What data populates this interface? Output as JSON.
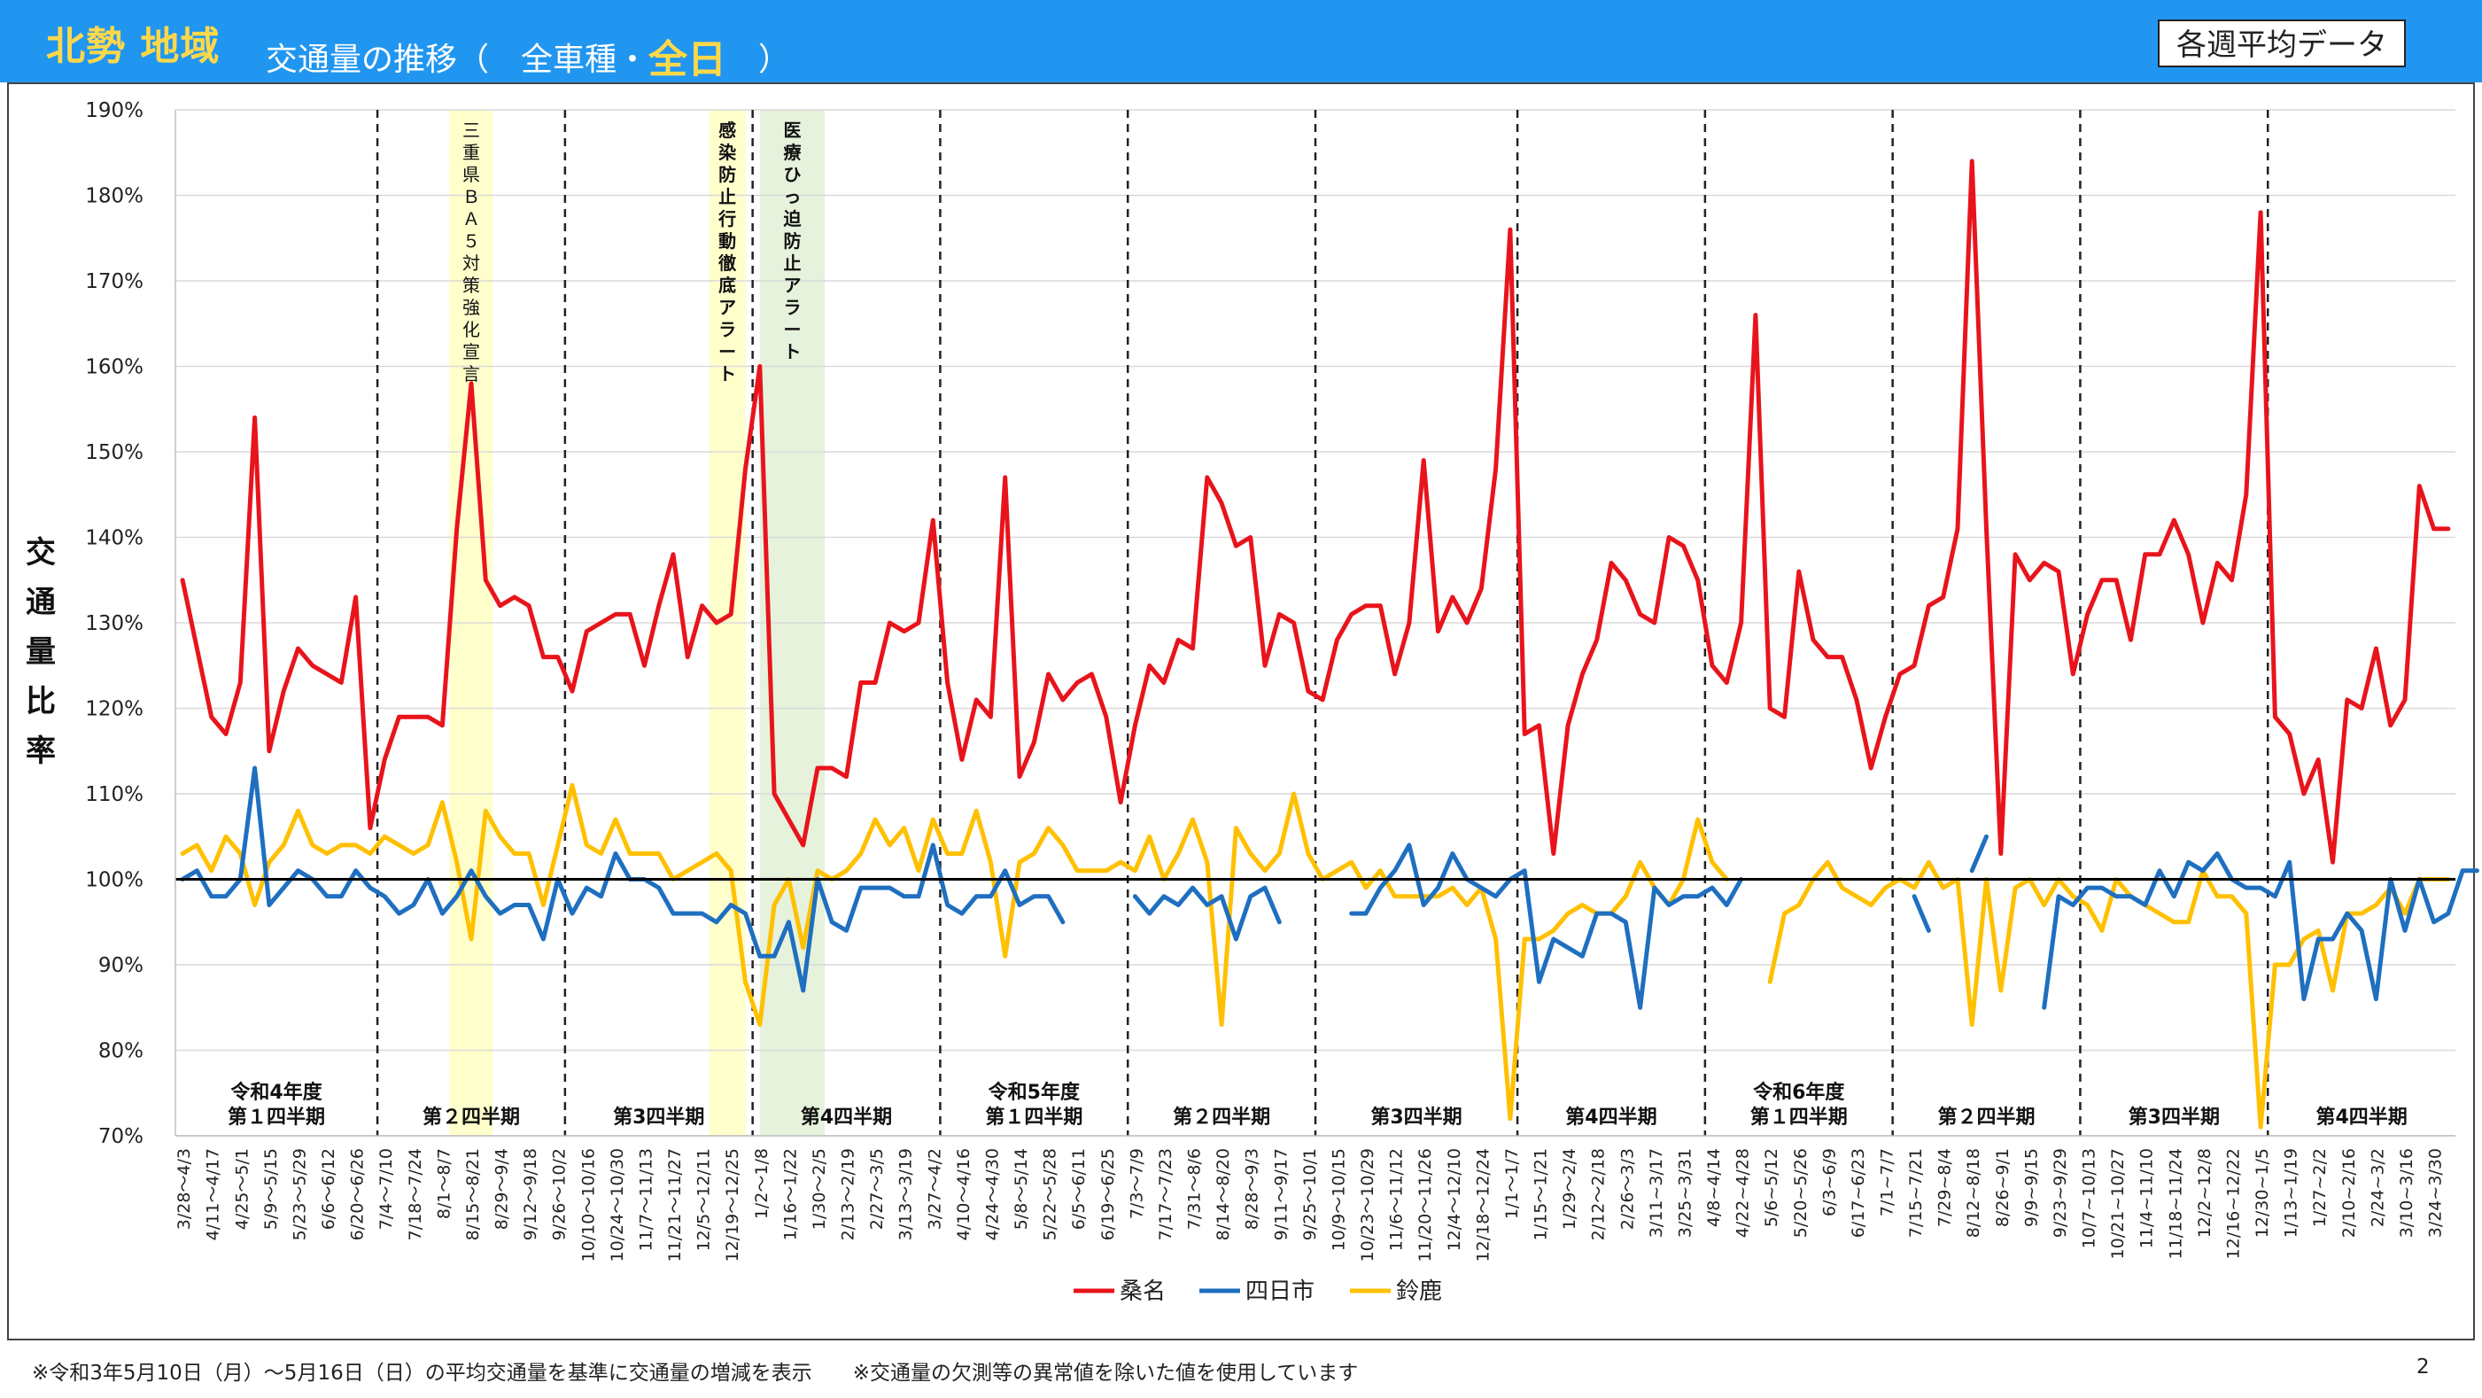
{
  "header": {
    "region": "北勢 地域",
    "title_prefix": "交通量の推移（　全車種・",
    "title_highlight": "全日",
    "title_suffix": "　）",
    "badge": "各週平均データ"
  },
  "footnote": "※令和3年5月10日（月）～5月16日（日）の平均交通量を基準に交通量の増減を表示　　※交通量の欠測等の異常値を除いた値を使用しています",
  "page_number": "2",
  "colors": {
    "kuwana": "#e8141c",
    "yokkaichi": "#1f6fc0",
    "suzuka": "#ffc000"
  },
  "chart_data": {
    "type": "line",
    "ylabel": "交通量比率",
    "ylim": [
      70,
      190
    ],
    "y_ticks": [
      70,
      80,
      90,
      100,
      110,
      120,
      130,
      140,
      150,
      160,
      170,
      180,
      190
    ],
    "y_tick_labels": [
      "70%",
      "80%",
      "90%",
      "100%",
      "110%",
      "120%",
      "130%",
      "140%",
      "150%",
      "160%",
      "170%",
      "180%",
      "190%"
    ],
    "reference_line": 100,
    "x_labels": [
      "3/28～4/3",
      "4/11～4/17",
      "4/25～5/1",
      "5/9～5/15",
      "5/23～5/29",
      "6/6～6/12",
      "6/20～6/26",
      "7/4～7/10",
      "7/18～7/24",
      "8/1～8/7",
      "8/15～8/21",
      "8/29～9/4",
      "9/12～9/18",
      "9/26～10/2",
      "10/10～10/16",
      "10/24～10/30",
      "11/7～11/13",
      "11/21～11/27",
      "12/5～12/11",
      "12/19～12/25",
      "1/2～1/8",
      "1/16～1/22",
      "1/30～2/5",
      "2/13～2/19",
      "2/27～3/5",
      "3/13～3/19",
      "3/27～4/2",
      "4/10～4/16",
      "4/24～4/30",
      "5/8～5/14",
      "5/22～5/28",
      "6/5～6/11",
      "6/19～6/25",
      "7/3～7/9",
      "7/17～7/23",
      "7/31～8/6",
      "8/14～8/20",
      "8/28～9/3",
      "9/11～9/17",
      "9/25～10/1",
      "10/9～10/15",
      "10/23～10/29",
      "11/6～11/12",
      "11/20～11/26",
      "12/4～12/10",
      "12/18～12/24",
      "1/1～1/7",
      "1/15～1/21",
      "1/29～2/4",
      "2/12～2/18",
      "2/26～3/3",
      "3/11~3/17",
      "3/25~3/31",
      "4/8~4/14",
      "4/22~4/28",
      "5/6~5/12",
      "5/20~5/26",
      "6/3~6/9",
      "6/17~6/23",
      "7/1~7/7",
      "7/15~7/21",
      "7/29~8/4",
      "8/12~8/18",
      "8/26~9/1",
      "9/9~9/15",
      "9/23~9/29",
      "10/7~10/13",
      "10/21~10/27",
      "11/4~11/10",
      "11/18~11/24",
      "12/2~12/8",
      "12/16~12/22",
      "12/30~1/5",
      "1/13~1/19",
      "1/27~2/2",
      "2/10~2/16",
      "2/24~3/2",
      "3/10~3/16",
      "3/24~3/30"
    ],
    "x_count": 158,
    "series": [
      {
        "name": "桑名",
        "color": "#e8141c",
        "values": [
          135,
          127,
          119,
          117,
          123,
          154,
          115,
          122,
          127,
          125,
          124,
          123,
          133,
          106,
          114,
          119,
          119,
          119,
          118,
          141,
          158,
          135,
          132,
          133,
          132,
          126,
          126,
          122,
          129,
          130,
          131,
          131,
          125,
          132,
          138,
          126,
          132,
          130,
          131,
          148,
          160,
          110,
          107,
          104,
          113,
          113,
          112,
          123,
          123,
          130,
          129,
          130,
          142,
          123,
          114,
          121,
          119,
          147,
          112,
          116,
          124,
          121,
          123,
          124,
          119,
          109,
          118,
          125,
          123,
          128,
          127,
          147,
          144,
          139,
          140,
          125,
          131,
          130,
          122,
          121,
          128,
          131,
          132,
          132,
          124,
          130,
          149,
          129,
          133,
          130,
          134,
          148,
          176,
          117,
          118,
          103,
          118,
          124,
          128,
          137,
          135,
          131,
          130,
          140,
          139,
          135,
          125,
          123,
          130,
          166,
          120,
          119,
          136,
          128,
          126,
          126,
          121,
          113,
          119,
          124,
          125,
          132,
          133,
          141,
          184,
          141,
          103,
          138,
          135,
          137,
          136,
          124,
          131,
          135,
          135,
          128,
          138,
          138,
          142,
          138,
          130,
          137,
          135,
          145,
          178,
          119,
          117,
          110,
          114,
          102,
          121,
          120,
          127,
          118,
          121,
          146,
          141,
          141
        ]
      },
      {
        "name": "四日市",
        "color": "#1f6fc0",
        "values": [
          100,
          101,
          98,
          98,
          100,
          113,
          97,
          99,
          101,
          100,
          98,
          98,
          101,
          99,
          98,
          96,
          97,
          100,
          96,
          98,
          101,
          98,
          96,
          97,
          97,
          93,
          100,
          96,
          99,
          98,
          103,
          100,
          100,
          99,
          96,
          96,
          96,
          95,
          97,
          96,
          91,
          91,
          95,
          87,
          100,
          95,
          94,
          99,
          99,
          99,
          98,
          98,
          104,
          97,
          96,
          98,
          98,
          101,
          97,
          98,
          98,
          95,
          null,
          null,
          null,
          null,
          98,
          96,
          98,
          97,
          99,
          97,
          98,
          93,
          98,
          99,
          95,
          null,
          null,
          null,
          null,
          96,
          96,
          99,
          101,
          104,
          97,
          99,
          103,
          100,
          99,
          98,
          100,
          101,
          88,
          93,
          92,
          91,
          96,
          96,
          95,
          85,
          99,
          97,
          98,
          98,
          99,
          97,
          100,
          null,
          null,
          null,
          null,
          null,
          null,
          null,
          null,
          null,
          null,
          null,
          98,
          94,
          null,
          null,
          101,
          105,
          null,
          null,
          null,
          85,
          98,
          97,
          99,
          99,
          98,
          98,
          97,
          101,
          98,
          102,
          101,
          103,
          100,
          99,
          99,
          98,
          102,
          86,
          93,
          93,
          96,
          94,
          86,
          100,
          94,
          100,
          95,
          96,
          101,
          101
        ]
      },
      {
        "name": "鈴鹿",
        "color": "#ffc000",
        "values": [
          103,
          104,
          101,
          105,
          103,
          97,
          102,
          104,
          108,
          104,
          103,
          104,
          104,
          103,
          105,
          104,
          103,
          104,
          109,
          102,
          93,
          108,
          105,
          103,
          103,
          97,
          104,
          111,
          104,
          103,
          107,
          103,
          103,
          103,
          100,
          101,
          102,
          103,
          101,
          88,
          83,
          97,
          100,
          92,
          101,
          100,
          101,
          103,
          107,
          104,
          106,
          101,
          107,
          103,
          103,
          108,
          102,
          91,
          102,
          103,
          106,
          104,
          101,
          101,
          101,
          102,
          101,
          105,
          100,
          103,
          107,
          102,
          83,
          106,
          103,
          101,
          103,
          110,
          103,
          100,
          101,
          102,
          99,
          101,
          98,
          98,
          98,
          98,
          99,
          97,
          99,
          93,
          72,
          93,
          93,
          94,
          96,
          97,
          96,
          96,
          98,
          102,
          99,
          97,
          100,
          107,
          102,
          100,
          null,
          null,
          88,
          96,
          97,
          100,
          102,
          99,
          98,
          97,
          99,
          100,
          99,
          102,
          99,
          100,
          83,
          100,
          87,
          99,
          100,
          97,
          100,
          98,
          97,
          94,
          100,
          98,
          97,
          96,
          95,
          95,
          101,
          98,
          98,
          96,
          71,
          90,
          90,
          93,
          94,
          87,
          96,
          96,
          97,
          99,
          96,
          100,
          100,
          100
        ]
      }
    ],
    "period_labels": [
      {
        "text": "令和4年度",
        "text2": "第１四半期"
      },
      {
        "text": "第２四半期",
        "text2": ""
      },
      {
        "text": "第3四半期",
        "text2": ""
      },
      {
        "text": "第4四半期",
        "text2": ""
      },
      {
        "text": "令和5年度",
        "text2": "第１四半期"
      },
      {
        "text": "第２四半期",
        "text2": ""
      },
      {
        "text": "第3四半期",
        "text2": ""
      },
      {
        "text": "第4四半期",
        "text2": ""
      },
      {
        "text": "令和6年度",
        "text2": "第１四半期"
      },
      {
        "text": "第２四半期",
        "text2": ""
      },
      {
        "text": "第3四半期",
        "text2": ""
      },
      {
        "text": "第4四半期",
        "text2": ""
      }
    ],
    "period_boundaries": [
      13,
      26,
      39,
      52,
      65,
      78,
      92,
      105,
      118,
      131,
      144
    ],
    "highlight_bands": [
      {
        "label": "三重県ＢＡ５対策強化宣言",
        "start": 19,
        "end": 21,
        "color": "#ffffcc"
      },
      {
        "label": "感染防止行動徹底アラート",
        "start": 37,
        "end": 38.5,
        "color": "#ffffcc"
      },
      {
        "label": "医療ひっ迫防止アラート",
        "start": 40.5,
        "end": 44,
        "color": "#e6f2dc"
      }
    ],
    "legend": "bottom-center"
  }
}
